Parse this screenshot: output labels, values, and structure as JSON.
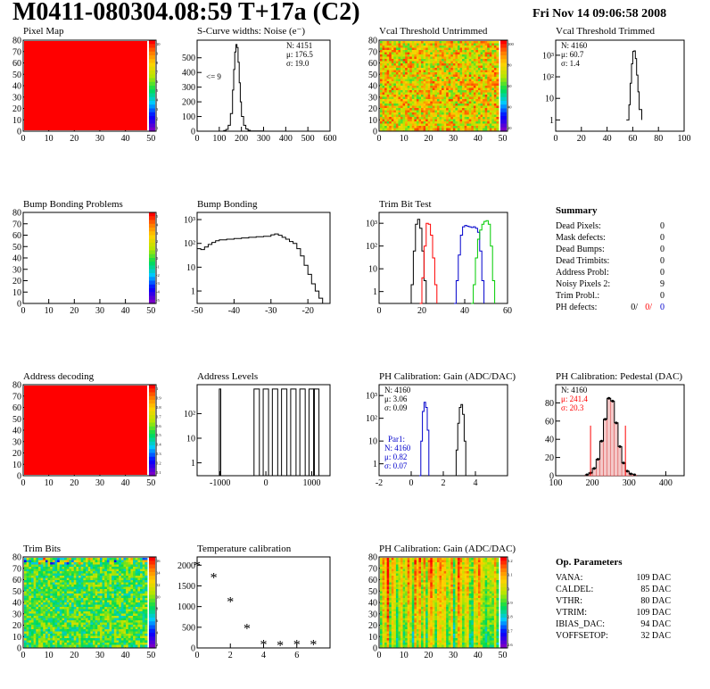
{
  "page": {
    "title": "M0411-080304.08:59 T+17a (C2)",
    "date": "Fri Nov 14 09:06:58 2008"
  },
  "colors": {
    "red": "#ff0000",
    "blue": "#0000cc",
    "green": "#00cc00",
    "black": "#000000"
  },
  "chart_data": [
    {
      "id": "pixel-map",
      "type": "heatmap",
      "title": "Pixel Map",
      "map": "uniform-red",
      "xticks": [
        0,
        10,
        20,
        30,
        40,
        50
      ],
      "yticks": [
        0,
        10,
        20,
        30,
        40,
        50,
        60,
        70,
        80
      ],
      "xlim": [
        0,
        52
      ],
      "ylim": [
        0,
        80
      ],
      "colorbar": {
        "labels": [
          "10",
          "9",
          "8",
          "7",
          "6",
          "5",
          "4",
          "3",
          "2",
          "1"
        ]
      }
    },
    {
      "id": "scurve",
      "type": "line",
      "title": "S-Curve widths: Noise (e⁻)",
      "logy": false,
      "xticks": [
        0,
        100,
        200,
        300,
        400,
        500,
        600
      ],
      "yticks": [
        0,
        100,
        200,
        300,
        400,
        500
      ],
      "xlim": [
        0,
        600
      ],
      "ylim": [
        0,
        620
      ],
      "stats": [
        "N: 4151",
        "μ: 176.5",
        "σ: 19.0"
      ],
      "annotation": "<= 9",
      "series": [
        {
          "x": [
            100,
            120,
            130,
            140,
            150,
            160,
            165,
            170,
            175,
            180,
            185,
            190,
            195,
            200,
            210,
            220,
            230,
            240,
            260,
            300
          ],
          "y": [
            0,
            4,
            12,
            40,
            120,
            280,
            420,
            540,
            590,
            570,
            470,
            330,
            200,
            100,
            40,
            15,
            6,
            2,
            1,
            0
          ]
        }
      ]
    },
    {
      "id": "vcal-untrimmed",
      "type": "heatmap",
      "title": "Vcal Threshold Untrimmed",
      "map": "noisy-orange",
      "xticks": [
        0,
        10,
        20,
        30,
        40,
        50
      ],
      "yticks": [
        0,
        10,
        20,
        30,
        40,
        50,
        60,
        70,
        80
      ],
      "xlim": [
        0,
        52
      ],
      "ylim": [
        0,
        80
      ],
      "colorbar": {
        "labels": [
          "100",
          "80",
          "60",
          "40",
          "20"
        ]
      }
    },
    {
      "id": "vcal-trimmed",
      "type": "line",
      "title": "Vcal Threshold Trimmed",
      "logy": true,
      "xticks": [
        0,
        20,
        40,
        60,
        80,
        100
      ],
      "yticks": [
        1,
        10,
        100,
        1000
      ],
      "ytick_labels": [
        "1",
        "10",
        "10²",
        "10³"
      ],
      "xlim": [
        0,
        100
      ],
      "ylim": [
        0.3,
        5000
      ],
      "stats": [
        "N: 4160",
        "μ: 60.7",
        "σ: 1.4"
      ],
      "series": [
        {
          "x": [
            55,
            57,
            58,
            59,
            60,
            61,
            62,
            63,
            64,
            65,
            67
          ],
          "y": [
            1,
            5,
            50,
            400,
            1500,
            1600,
            700,
            120,
            20,
            3,
            1
          ]
        }
      ]
    },
    {
      "id": "bump-problems",
      "type": "heatmap",
      "title": "Bump Bonding Problems",
      "map": "empty",
      "xticks": [
        0,
        10,
        20,
        30,
        40,
        50
      ],
      "yticks": [
        0,
        10,
        20,
        30,
        40,
        50,
        60,
        70,
        80
      ],
      "xlim": [
        0,
        52
      ],
      "ylim": [
        0,
        80
      ],
      "colorbar": {
        "labels": [
          "5",
          "4",
          "3",
          "2",
          "1",
          "0",
          "-1",
          "-2",
          "-3",
          "-4",
          "-5"
        ]
      }
    },
    {
      "id": "bump-bonding",
      "type": "line",
      "title": "Bump Bonding",
      "logy": true,
      "xticks": [
        -50,
        -40,
        -30,
        -20
      ],
      "yticks": [
        1,
        10,
        100,
        1000
      ],
      "ytick_labels": [
        "1",
        "10",
        "10²",
        "10³"
      ],
      "xlim": [
        -50,
        -14
      ],
      "ylim": [
        0.3,
        2000
      ],
      "series": [
        {
          "x": [
            -50,
            -49,
            -48,
            -47,
            -46,
            -45,
            -44,
            -42,
            -40,
            -38,
            -36,
            -34,
            -32,
            -30,
            -29,
            -28,
            -27,
            -26,
            -25,
            -24,
            -23,
            -22,
            -21,
            -20,
            -19,
            -18,
            -17,
            -16
          ],
          "y": [
            60,
            55,
            70,
            90,
            110,
            130,
            140,
            150,
            160,
            170,
            180,
            190,
            200,
            230,
            250,
            220,
            180,
            150,
            120,
            100,
            60,
            30,
            12,
            5,
            2,
            1,
            0.5,
            0.3
          ]
        }
      ]
    },
    {
      "id": "trim-bit-test",
      "type": "line",
      "title": "Trim Bit Test",
      "logy": true,
      "xticks": [
        0,
        20,
        40,
        60
      ],
      "yticks": [
        1,
        10,
        100,
        1000
      ],
      "ytick_labels": [
        "1",
        "10",
        "10²",
        "10³"
      ],
      "xlim": [
        0,
        60
      ],
      "ylim": [
        0.3,
        3000
      ],
      "series": [
        {
          "color": "#000000",
          "x": [
            14,
            15,
            16,
            17,
            18,
            19,
            20,
            21,
            22
          ],
          "y": [
            0.3,
            2,
            60,
            900,
            1500,
            600,
            60,
            3,
            0.3
          ]
        },
        {
          "color": "#ff0000",
          "x": [
            19,
            20,
            21,
            22,
            23,
            24,
            25,
            26,
            27
          ],
          "y": [
            0.3,
            4,
            100,
            1000,
            900,
            300,
            30,
            2,
            0.3
          ]
        },
        {
          "color": "#0000cc",
          "x": [
            35,
            36,
            37,
            38,
            39,
            40,
            41,
            42,
            43,
            44,
            45,
            46,
            47,
            48,
            49
          ],
          "y": [
            0.3,
            3,
            40,
            300,
            700,
            800,
            750,
            700,
            650,
            700,
            600,
            400,
            60,
            3,
            0.3
          ]
        },
        {
          "color": "#00cc00",
          "x": [
            43,
            44,
            45,
            46,
            47,
            48,
            49,
            50,
            51,
            52,
            53,
            54
          ],
          "y": [
            0.3,
            2,
            30,
            200,
            500,
            900,
            1200,
            1300,
            900,
            100,
            3,
            0.3
          ]
        }
      ]
    },
    {
      "id": "summary",
      "type": "table",
      "title": "Summary",
      "rows": [
        [
          "Dead Pixels:",
          "0"
        ],
        [
          "Mask defects:",
          "0"
        ],
        [
          "Dead Bumps:",
          "0"
        ],
        [
          "Dead Trimbits:",
          "0"
        ],
        [
          "Address Probl:",
          "0"
        ],
        [
          "Noisy Pixels 2:",
          "9"
        ],
        [
          "Trim Probl.:",
          "0"
        ]
      ],
      "ph_defects": {
        "label": "PH defects:",
        "values": [
          "0/",
          "0/",
          "0"
        ]
      }
    },
    {
      "id": "address-decoding",
      "type": "heatmap",
      "title": "Address decoding",
      "map": "uniform-red",
      "xticks": [
        0,
        10,
        20,
        30,
        40,
        50
      ],
      "yticks": [
        0,
        10,
        20,
        30,
        40,
        50,
        60,
        70,
        80
      ],
      "xlim": [
        0,
        52
      ],
      "ylim": [
        0,
        80
      ],
      "colorbar": {
        "labels": [
          "1",
          "0.9",
          "0.8",
          "0.7",
          "0.6",
          "0.5",
          "0.4",
          "0.3",
          "0.2",
          "0.1"
        ]
      }
    },
    {
      "id": "address-levels",
      "type": "line",
      "title": "Address Levels",
      "logy": true,
      "xticks": [
        -1000,
        0,
        1000
      ],
      "yticks": [
        1,
        10,
        100
      ],
      "ytick_labels": [
        "1",
        "10",
        "10²"
      ],
      "xlim": [
        -1500,
        1400
      ],
      "ylim": [
        0.3,
        1500
      ],
      "peaks": [
        -1000,
        -200,
        0,
        200,
        400,
        600,
        800,
        1000,
        1100
      ],
      "peak_height": 1000
    },
    {
      "id": "ph-gain",
      "type": "line",
      "title": "PH Calibration: Gain (ADC/DAC)",
      "logy": true,
      "xticks": [
        -2,
        0,
        2,
        4
      ],
      "yticks": [
        1,
        10,
        100,
        1000
      ],
      "ytick_labels": [
        "1",
        "10",
        "10²",
        "10³"
      ],
      "xlim": [
        -2,
        6
      ],
      "ylim": [
        0.3,
        3000
      ],
      "stats": [
        "N: 4160",
        "μ: 3.06",
        "σ: 0.09"
      ],
      "stats2_title": "Par1:",
      "stats2": [
        "N: 4160",
        "μ: 0.82",
        "σ: 0.07"
      ],
      "series": [
        {
          "color": "#000000",
          "x": [
            2.7,
            2.8,
            2.9,
            3.0,
            3.1,
            3.2,
            3.3,
            3.4
          ],
          "y": [
            0.3,
            4,
            60,
            300,
            400,
            150,
            10,
            0.3
          ]
        },
        {
          "color": "#0000cc",
          "x": [
            0.5,
            0.6,
            0.7,
            0.8,
            0.9,
            1.0,
            1.1
          ],
          "y": [
            0.3,
            10,
            200,
            500,
            300,
            30,
            0.3
          ]
        }
      ]
    },
    {
      "id": "ph-pedestal",
      "type": "line",
      "title": "PH Calibration: Pedestal (DAC)",
      "logy": false,
      "xticks": [
        100,
        200,
        300,
        400
      ],
      "yticks": [
        0,
        20,
        40,
        60,
        80
      ],
      "xlim": [
        100,
        450
      ],
      "ylim": [
        0,
        100
      ],
      "stats": [
        "N: 4160",
        "μ: 241.4",
        "σ: 20.3"
      ],
      "cut_lines": [
        195,
        290
      ],
      "series": [
        {
          "x": [
            180,
            190,
            200,
            210,
            220,
            230,
            240,
            250,
            260,
            270,
            280,
            290,
            300,
            310
          ],
          "y": [
            1,
            3,
            8,
            18,
            38,
            62,
            85,
            82,
            58,
            32,
            14,
            5,
            2,
            1
          ]
        }
      ]
    },
    {
      "id": "trim-bits",
      "type": "heatmap",
      "title": "Trim Bits",
      "map": "noisy-green",
      "xticks": [
        0,
        10,
        20,
        30,
        40,
        50
      ],
      "yticks": [
        0,
        10,
        20,
        30,
        40,
        50,
        60,
        70,
        80
      ],
      "xlim": [
        0,
        52
      ],
      "ylim": [
        0,
        80
      ],
      "colorbar": {
        "labels": [
          "16",
          "14",
          "12",
          "10",
          "8",
          "6",
          "4",
          "2"
        ]
      }
    },
    {
      "id": "temperature",
      "type": "scatter",
      "title": "Temperature calibration",
      "logy": false,
      "xticks": [
        0,
        2,
        4,
        6
      ],
      "yticks": [
        0,
        500,
        1000,
        1500,
        2000
      ],
      "xlim": [
        0,
        8
      ],
      "ylim": [
        0,
        2200
      ],
      "series": [
        {
          "x": [
            0,
            1,
            2,
            3,
            4,
            5,
            6,
            7
          ],
          "y": [
            2010,
            1710,
            1130,
            480,
            100,
            80,
            100,
            100
          ]
        }
      ]
    },
    {
      "id": "ph-gain-map",
      "type": "heatmap",
      "title": "PH Calibration: Gain (ADC/DAC)",
      "map": "striped-red",
      "xticks": [
        0,
        10,
        20,
        30,
        40,
        50
      ],
      "yticks": [
        0,
        10,
        20,
        30,
        40,
        50,
        60,
        70,
        80
      ],
      "xlim": [
        0,
        52
      ],
      "ylim": [
        0,
        80
      ],
      "colorbar": {
        "labels": [
          "3.2",
          "3.1",
          "3",
          "2.9",
          "2.8",
          "2.7",
          "2.6"
        ]
      }
    },
    {
      "id": "op-parameters",
      "type": "table",
      "title": "Op. Parameters",
      "rows": [
        [
          "VANA:",
          "109 DAC"
        ],
        [
          "CALDEL:",
          "85 DAC"
        ],
        [
          "VTHR:",
          "80 DAC"
        ],
        [
          "VTRIM:",
          "109 DAC"
        ],
        [
          "IBIAS_DAC:",
          "94 DAC"
        ],
        [
          "VOFFSETOP:",
          "32 DAC"
        ]
      ]
    }
  ]
}
